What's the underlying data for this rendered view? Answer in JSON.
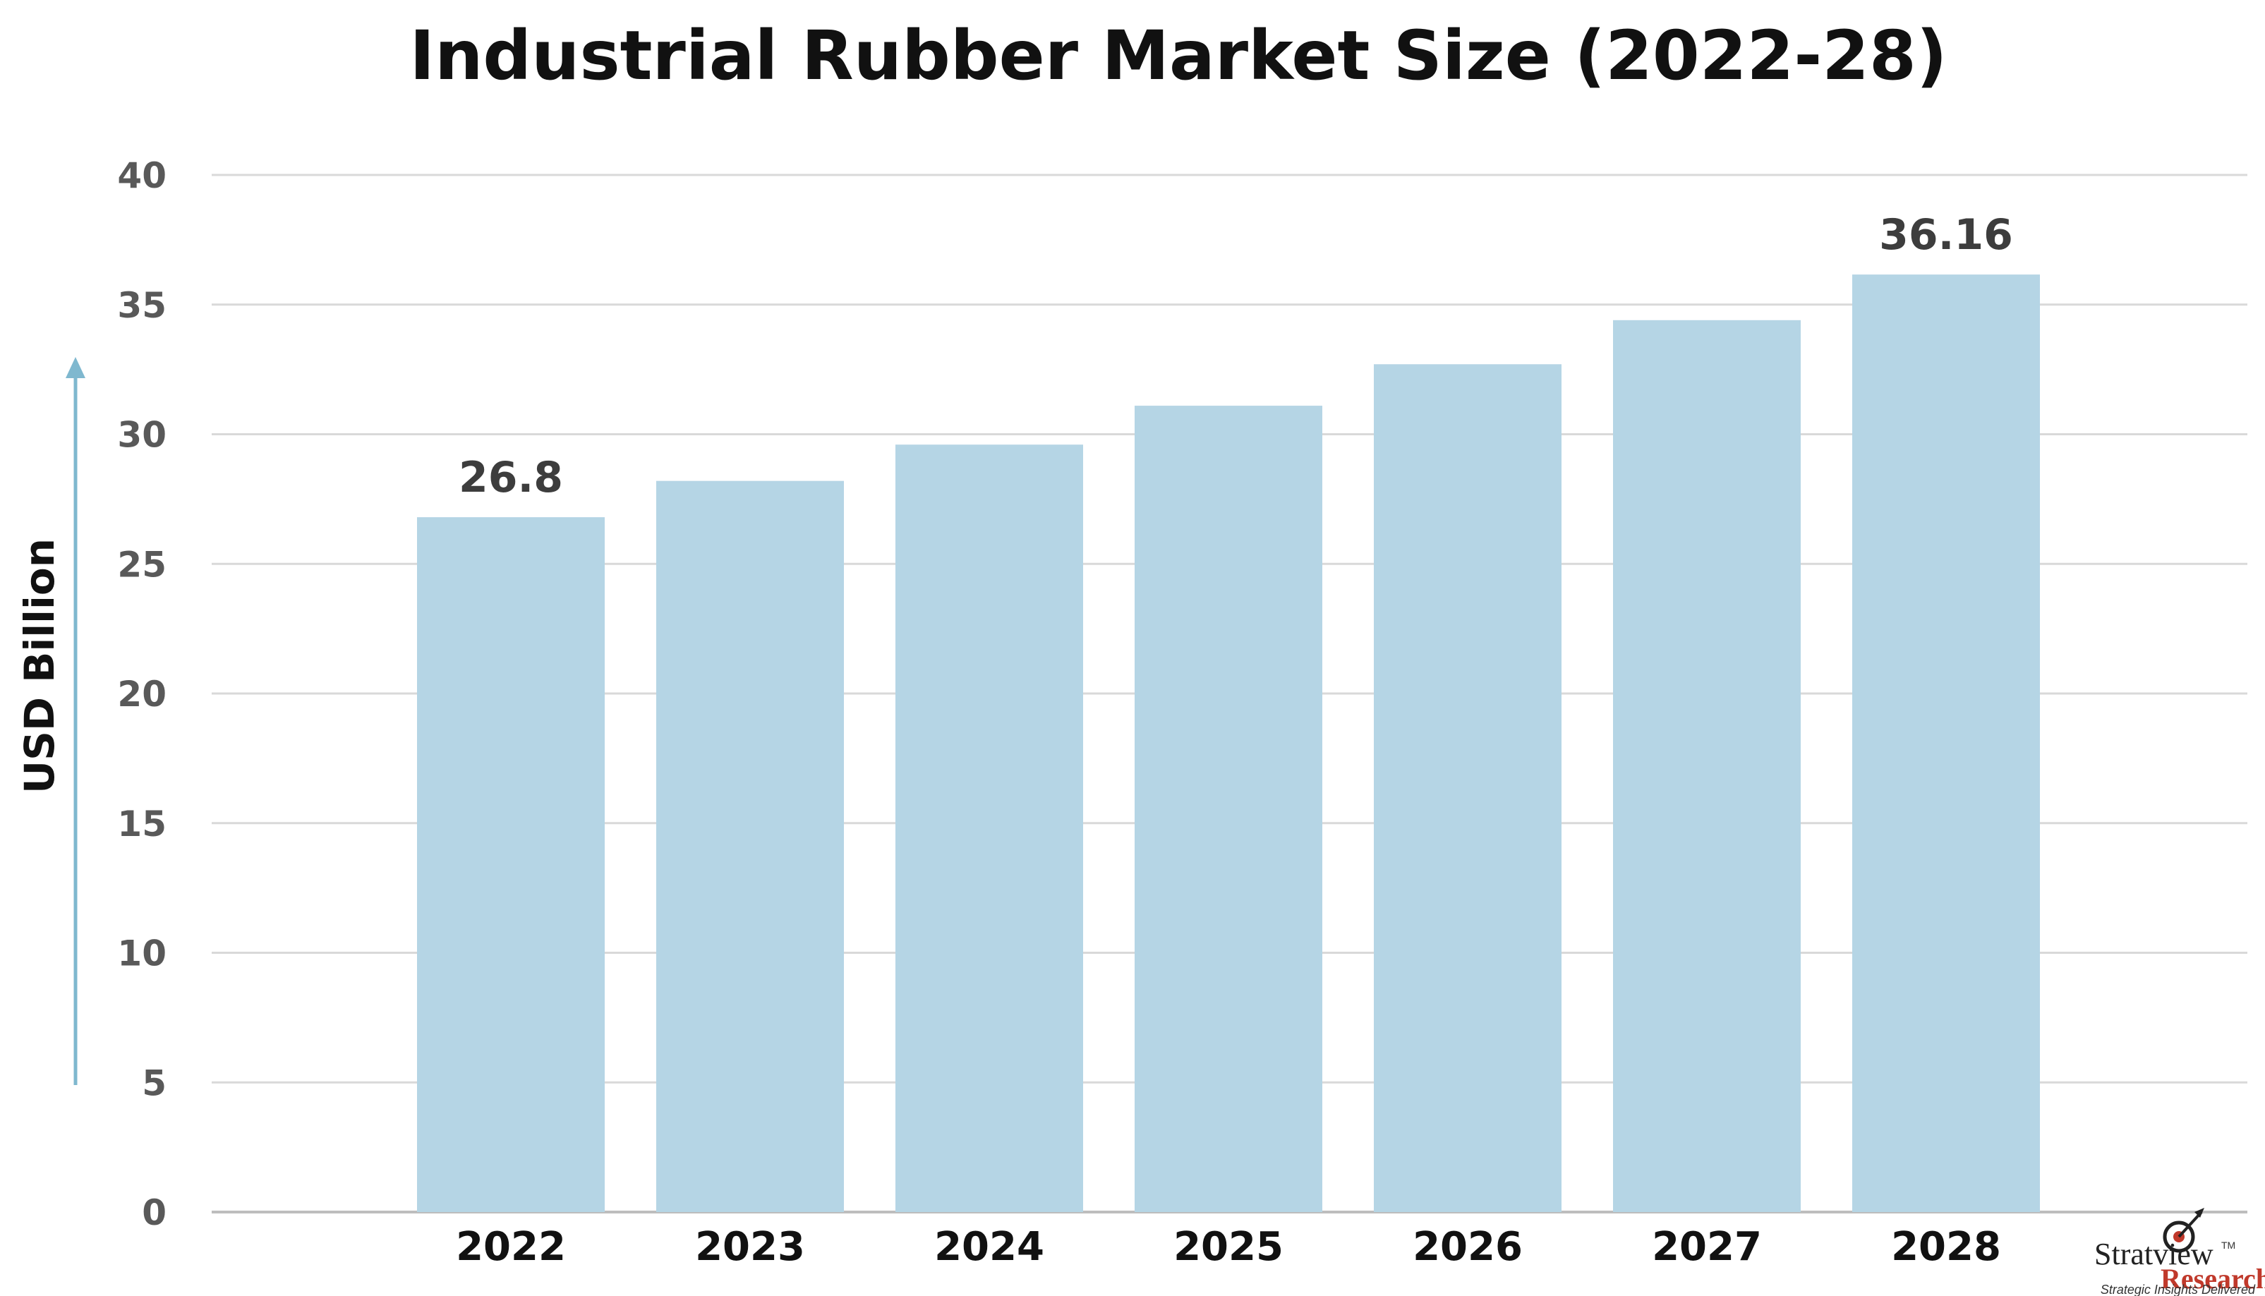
{
  "chart_data": {
    "type": "bar",
    "title": "Industrial Rubber Market Size (2022-28)",
    "xlabel": "",
    "ylabel": "USD Billion",
    "categories": [
      "2022",
      "2023",
      "2024",
      "2025",
      "2026",
      "2027",
      "2028"
    ],
    "values": [
      26.8,
      28.2,
      29.6,
      31.1,
      32.7,
      34.4,
      36.16
    ],
    "data_labels": [
      "26.8",
      "",
      "",
      "",
      "",
      "",
      "36.16"
    ],
    "yticks": [
      "0",
      "5",
      "10",
      "15",
      "20",
      "25",
      "30",
      "35",
      "40"
    ],
    "ylim": [
      0,
      40
    ],
    "grid": true,
    "legend": "none",
    "bar_color": "#b5d5e5",
    "arrow_color": "#7fb8cf"
  },
  "logo": {
    "name": "Stratview",
    "tm": "TM",
    "sub": "Research",
    "tagline": "Strategic Insights Delivered"
  }
}
